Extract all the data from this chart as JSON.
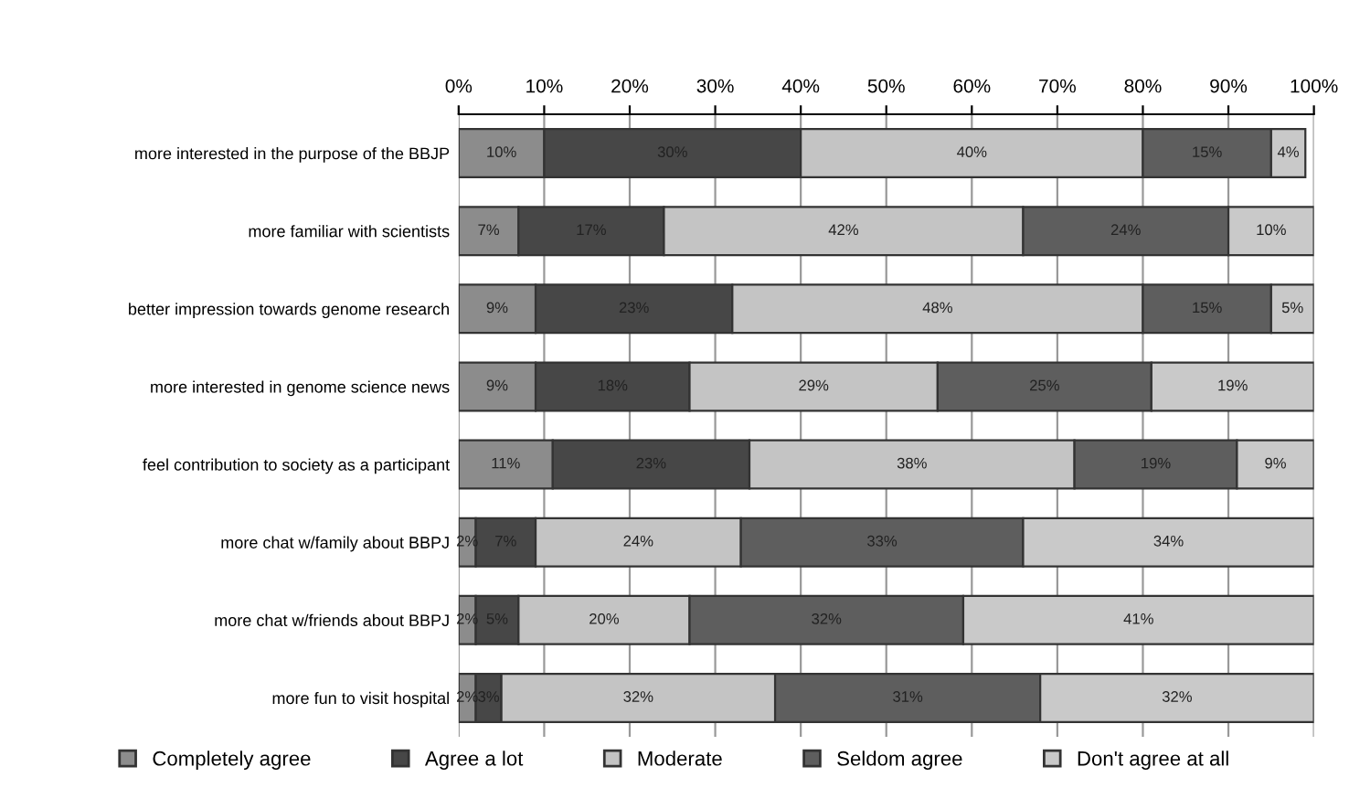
{
  "chart_data": {
    "type": "bar",
    "orientation": "horizontal",
    "stacked": true,
    "categories": [
      "more interested in the purpose of the BBJP",
      "more familiar with scientists",
      "better impression towards genome research",
      "more interested in genome science news",
      "feel contribution to society as a participant",
      "more chat w/family about BBPJ",
      "more chat w/friends about BBPJ",
      "more fun to visit hospital"
    ],
    "series": [
      {
        "name": "Completely agree",
        "color": "#8c8c8c",
        "values": [
          10,
          7,
          9,
          9,
          11,
          2,
          2,
          2
        ],
        "value_labels": [
          "10%",
          "7%",
          "9%",
          "9%",
          "11%",
          "2%",
          "2%",
          "2%"
        ]
      },
      {
        "name": "Agree a lot",
        "color": "#474747",
        "values": [
          30,
          17,
          23,
          18,
          23,
          7,
          5,
          3
        ],
        "value_labels": [
          "30%",
          "17%",
          "23%",
          "18%",
          "23%",
          "7%",
          "5%",
          "3%"
        ]
      },
      {
        "name": "Moderate",
        "color": "#c4c4c4",
        "values": [
          40,
          42,
          48,
          29,
          38,
          24,
          20,
          32
        ],
        "value_labels": [
          "40%",
          "42%",
          "48%",
          "29%",
          "38%",
          "24%",
          "20%",
          "32%"
        ]
      },
      {
        "name": "Seldom agree",
        "color": "#5e5e5e",
        "values": [
          15,
          24,
          15,
          25,
          19,
          33,
          32,
          31
        ],
        "value_labels": [
          "15%",
          "24%",
          "15%",
          "25%",
          "19%",
          "33%",
          "32%",
          "31%"
        ]
      },
      {
        "name": "Don't agree at all",
        "color": "#c9c9c9",
        "values": [
          4,
          10,
          5,
          19,
          9,
          34,
          41,
          32
        ],
        "value_labels": [
          "4%",
          "10%",
          "5%",
          "19%",
          "9%",
          "34%",
          "41%",
          "32%"
        ]
      }
    ],
    "xlim": [
      0,
      100
    ],
    "xticks": [
      {
        "value": 0,
        "label": "0%"
      },
      {
        "value": 10,
        "label": "10%"
      },
      {
        "value": 20,
        "label": "20%"
      },
      {
        "value": 30,
        "label": "30%"
      },
      {
        "value": 40,
        "label": "40%"
      },
      {
        "value": 50,
        "label": "50%"
      },
      {
        "value": 60,
        "label": "60%"
      },
      {
        "value": 70,
        "label": "70%"
      },
      {
        "value": 80,
        "label": "80%"
      },
      {
        "value": 90,
        "label": "90%"
      },
      {
        "value": 100,
        "label": "100%"
      }
    ],
    "grid": "x",
    "legend": "bottom"
  }
}
